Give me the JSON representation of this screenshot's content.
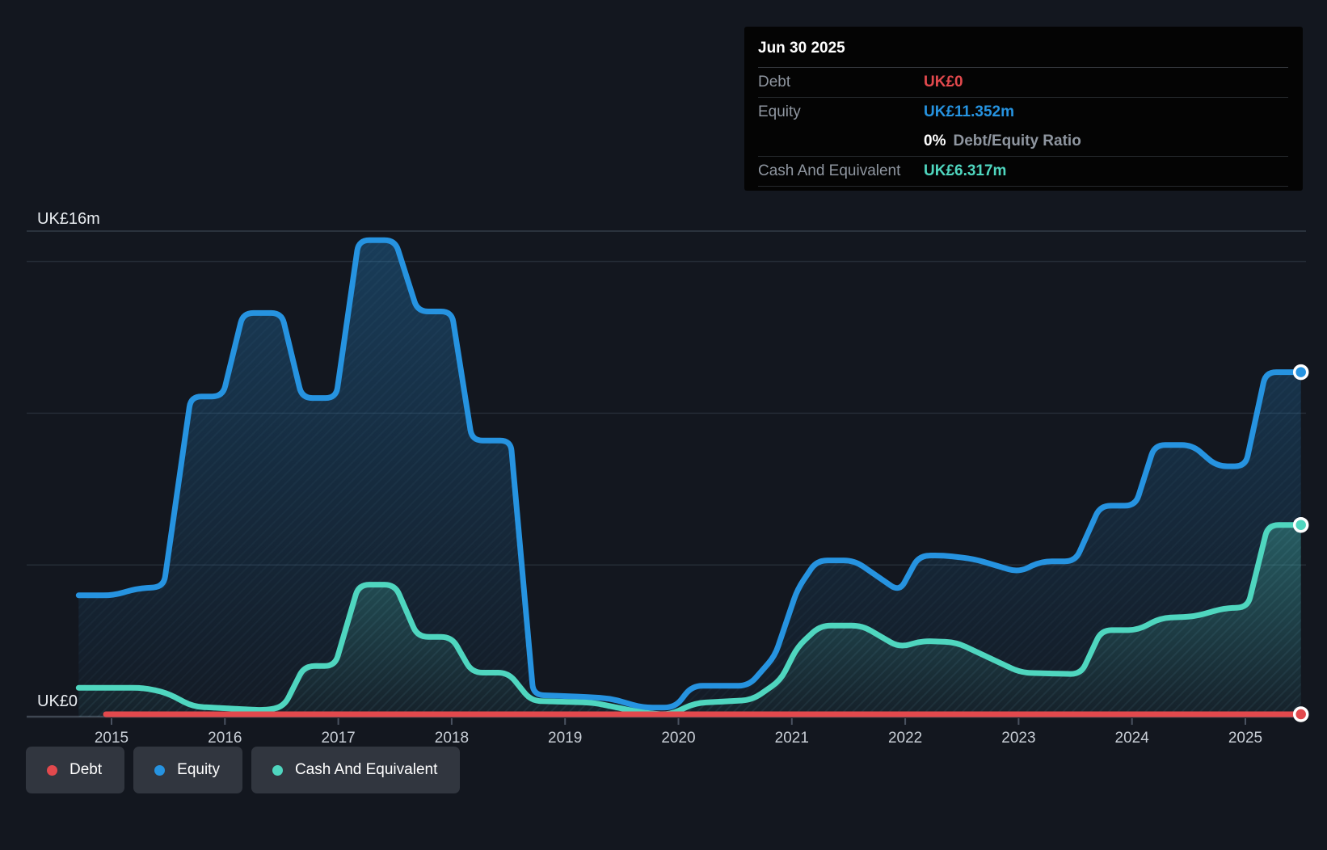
{
  "tooltip": {
    "date": "Jun 30 2025",
    "rows": [
      {
        "label": "Debt",
        "value": "UK£0",
        "color_key": "debt"
      },
      {
        "label": "Equity",
        "value": "UK£11.352m",
        "color_key": "equity"
      },
      {
        "label": "",
        "bold": "0%",
        "text": "Debt/Equity Ratio"
      },
      {
        "label": "Cash And Equivalent",
        "value": "UK£6.317m",
        "color_key": "cash"
      }
    ]
  },
  "axis": {
    "y_top_label": "UK£16m",
    "y_zero_label": "UK£0",
    "years": [
      "2015",
      "2016",
      "2017",
      "2018",
      "2019",
      "2020",
      "2021",
      "2022",
      "2023",
      "2024",
      "2025"
    ]
  },
  "legend": {
    "items": [
      {
        "label": "Debt",
        "color_key": "debt"
      },
      {
        "label": "Equity",
        "color_key": "equity"
      },
      {
        "label": "Cash And Equivalent",
        "color_key": "cash"
      }
    ]
  },
  "colors": {
    "debt": "#e2494d",
    "equity": "#2693e0",
    "cash": "#4fd6bf",
    "grid": "#252c36",
    "grid_top": "#333b47",
    "axis": "#3e4651",
    "tick": "#4a5260",
    "axis_text": "#c9cfd7",
    "label_text": "#e9edf1"
  },
  "chart_data": {
    "type": "area",
    "x_unit": "year",
    "x_range": [
      2014.71,
      2025.49
    ],
    "y_range": [
      0,
      16
    ],
    "y_unit": "UK£ millions",
    "x_ticks": [
      2015,
      2016,
      2017,
      2018,
      2019,
      2020,
      2021,
      2022,
      2023,
      2024,
      2025
    ],
    "y_gridlines": [
      {
        "value": 16,
        "strong": true
      },
      {
        "value": 15
      },
      {
        "value": 10
      },
      {
        "value": 5
      },
      {
        "value": 0,
        "axis": true
      }
    ],
    "legend_position": "bottom-left",
    "series": [
      {
        "name": "Debt",
        "color_key": "debt",
        "fill": false,
        "final_value_label": "UK£0",
        "points": [
          [
            2014.95,
            0
          ],
          [
            2025.49,
            0
          ]
        ]
      },
      {
        "name": "Equity",
        "color_key": "equity",
        "fill": true,
        "final_value_label": "UK£11.352m",
        "points": [
          [
            2014.71,
            4.0
          ],
          [
            2015.02,
            4.0
          ],
          [
            2015.22,
            4.22
          ],
          [
            2015.46,
            4.28
          ],
          [
            2015.7,
            10.55
          ],
          [
            2015.98,
            10.55
          ],
          [
            2016.16,
            13.3
          ],
          [
            2016.5,
            13.3
          ],
          [
            2016.68,
            10.5
          ],
          [
            2016.98,
            10.5
          ],
          [
            2017.18,
            15.7
          ],
          [
            2017.5,
            15.7
          ],
          [
            2017.7,
            13.35
          ],
          [
            2018.0,
            13.35
          ],
          [
            2018.18,
            9.1
          ],
          [
            2018.52,
            9.1
          ],
          [
            2018.72,
            0.72
          ],
          [
            2019.2,
            0.65
          ],
          [
            2019.4,
            0.6
          ],
          [
            2019.68,
            0.3
          ],
          [
            2019.97,
            0.3
          ],
          [
            2020.12,
            1.02
          ],
          [
            2020.62,
            1.02
          ],
          [
            2020.85,
            2.0
          ],
          [
            2021.05,
            4.2
          ],
          [
            2021.22,
            5.15
          ],
          [
            2021.55,
            5.15
          ],
          [
            2021.95,
            4.12
          ],
          [
            2022.12,
            5.3
          ],
          [
            2022.32,
            5.32
          ],
          [
            2022.6,
            5.2
          ],
          [
            2023.0,
            4.76
          ],
          [
            2023.2,
            5.12
          ],
          [
            2023.5,
            5.12
          ],
          [
            2023.72,
            6.95
          ],
          [
            2024.03,
            6.95
          ],
          [
            2024.2,
            8.95
          ],
          [
            2024.53,
            8.95
          ],
          [
            2024.75,
            8.25
          ],
          [
            2025.0,
            8.25
          ],
          [
            2025.18,
            11.352
          ],
          [
            2025.49,
            11.352
          ]
        ]
      },
      {
        "name": "Cash And Equivalent",
        "color_key": "cash",
        "fill": true,
        "final_value_label": "UK£6.317m",
        "points": [
          [
            2014.71,
            0.95
          ],
          [
            2015.28,
            0.95
          ],
          [
            2015.48,
            0.8
          ],
          [
            2015.72,
            0.33
          ],
          [
            2016.05,
            0.27
          ],
          [
            2016.35,
            0.21
          ],
          [
            2016.52,
            0.33
          ],
          [
            2016.7,
            1.67
          ],
          [
            2016.97,
            1.67
          ],
          [
            2017.18,
            4.35
          ],
          [
            2017.5,
            4.35
          ],
          [
            2017.7,
            2.63
          ],
          [
            2018.0,
            2.63
          ],
          [
            2018.18,
            1.45
          ],
          [
            2018.5,
            1.45
          ],
          [
            2018.7,
            0.52
          ],
          [
            2019.25,
            0.46
          ],
          [
            2019.7,
            0.12
          ],
          [
            2019.92,
            0.06
          ],
          [
            2020.15,
            0.45
          ],
          [
            2020.65,
            0.55
          ],
          [
            2020.9,
            1.2
          ],
          [
            2021.05,
            2.3
          ],
          [
            2021.25,
            3.0
          ],
          [
            2021.62,
            3.0
          ],
          [
            2021.95,
            2.28
          ],
          [
            2022.15,
            2.5
          ],
          [
            2022.45,
            2.45
          ],
          [
            2023.02,
            1.45
          ],
          [
            2023.3,
            1.42
          ],
          [
            2023.55,
            1.4
          ],
          [
            2023.73,
            2.85
          ],
          [
            2024.05,
            2.85
          ],
          [
            2024.25,
            3.25
          ],
          [
            2024.55,
            3.3
          ],
          [
            2024.82,
            3.58
          ],
          [
            2025.02,
            3.6
          ],
          [
            2025.2,
            6.317
          ],
          [
            2025.49,
            6.317
          ]
        ]
      }
    ]
  }
}
